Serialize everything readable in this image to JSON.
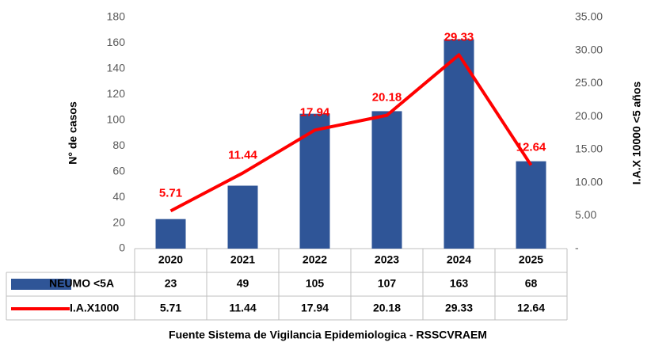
{
  "chart_data": {
    "type": "bar+line",
    "categories": [
      "2020",
      "2021",
      "2022",
      "2023",
      "2024",
      "2025"
    ],
    "series": [
      {
        "name": "NEUMO <5A",
        "type": "bar",
        "color": "#2f5597",
        "values": [
          23,
          49,
          105,
          107,
          163,
          68
        ]
      },
      {
        "name": "I.A.X1000",
        "type": "line",
        "axis": "y2",
        "color": "#ff0000",
        "values": [
          5.71,
          11.44,
          17.94,
          20.18,
          29.33,
          12.64
        ]
      }
    ],
    "ylabel": "N° de casos",
    "y2label": "I.A.X 10000 <5 años",
    "ylim": [
      0,
      180
    ],
    "yticks": [
      0,
      20,
      40,
      60,
      80,
      100,
      120,
      140,
      160,
      180
    ],
    "y2lim": [
      0,
      35
    ],
    "y2ticks": [
      {
        "value": 0,
        "label": "-"
      },
      {
        "value": 5,
        "label": "5.00"
      },
      {
        "value": 10,
        "label": "10.00"
      },
      {
        "value": 15,
        "label": "15.00"
      },
      {
        "value": 20,
        "label": "20.00"
      },
      {
        "value": 25,
        "label": "25.00"
      },
      {
        "value": 30,
        "label": "30.00"
      },
      {
        "value": 35,
        "label": "35.00"
      }
    ],
    "source": "Fuente Sistema de Vigilancia  Epidemiologica  - RSSCVRAEM",
    "grid": false,
    "data_table": true
  }
}
